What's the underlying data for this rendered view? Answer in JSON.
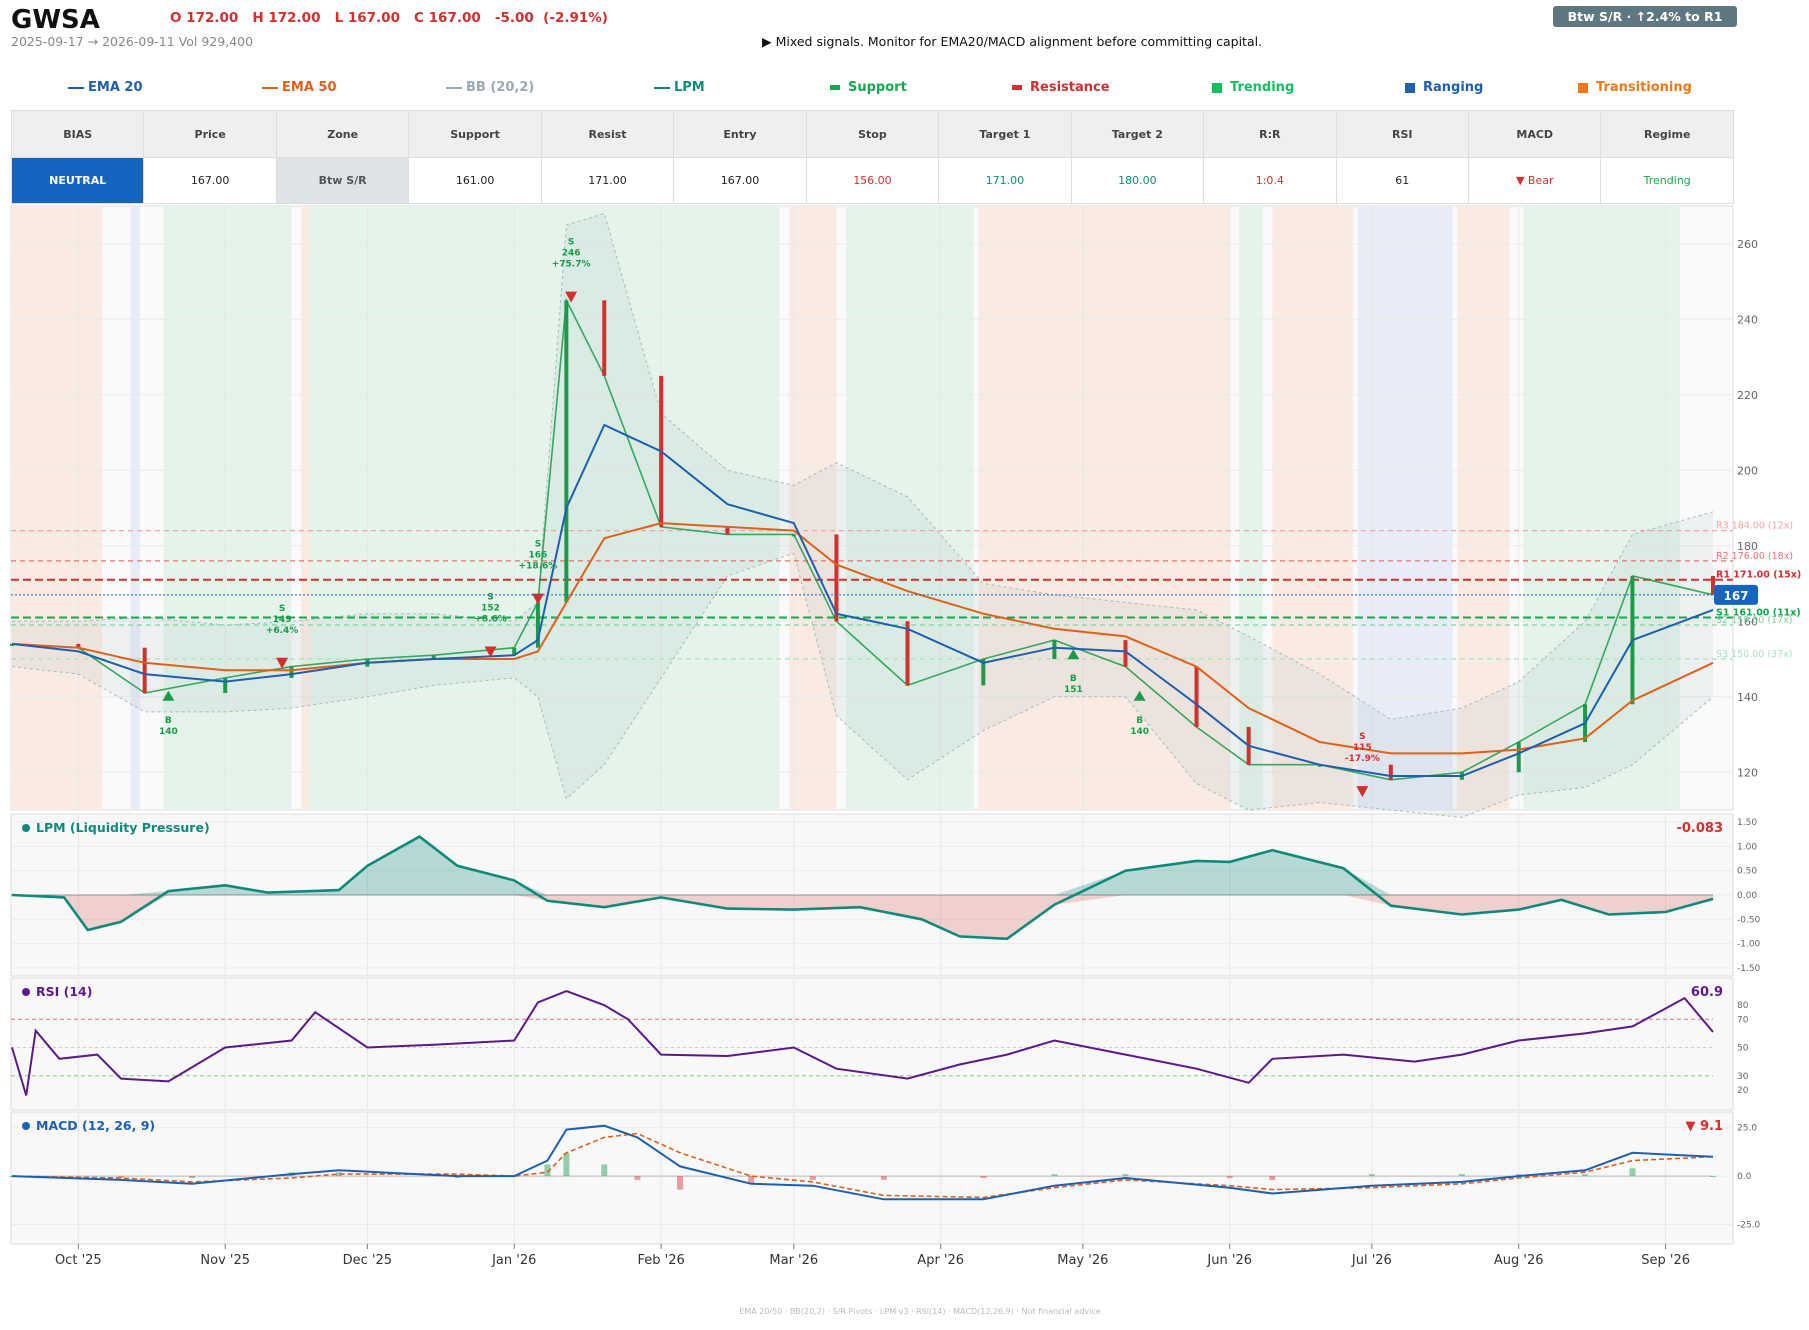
{
  "header": {
    "ticker": "GWSA",
    "ohlc_text": "O 172.00   H 172.00   L 167.00   C 167.00   -5.00  (-2.91%)",
    "date_range_text": "2025-09-17 → 2026-09-11   Vol 929,400",
    "message": "▶  Mixed signals. Monitor for EMA20/MACD alignment before committing capital.",
    "badge": "Btw S/R  ·  ↑2.4% to R1"
  },
  "legend": [
    {
      "label": "EMA 20",
      "color": "#1f5fb0",
      "kind": "line"
    },
    {
      "label": "EMA 50",
      "color": "#e0601a",
      "kind": "line"
    },
    {
      "label": "BB (20,2)",
      "color": "#9aaab5",
      "kind": "line"
    },
    {
      "label": "LPM",
      "color": "#0f8a7a",
      "kind": "line"
    },
    {
      "label": "Support",
      "color": "#14a84e",
      "kind": "bar"
    },
    {
      "label": "Resistance",
      "color": "#d32f2f",
      "kind": "bar"
    },
    {
      "label": "Trending",
      "color": "#12c060",
      "kind": "square"
    },
    {
      "label": "Ranging",
      "color": "#1f5fb0",
      "kind": "square"
    },
    {
      "label": "Transitioning",
      "color": "#f07818",
      "kind": "square"
    }
  ],
  "table": {
    "headers": [
      "BIAS",
      "Price",
      "Zone",
      "Support",
      "Resist",
      "Entry",
      "Stop",
      "Target 1",
      "Target 2",
      "R:R",
      "RSI",
      "MACD",
      "Regime"
    ],
    "values": [
      "NEUTRAL",
      "167.00",
      "Btw S/R",
      "161.00",
      "171.00",
      "167.00",
      "156.00",
      "171.00",
      "180.00",
      "1:0.4",
      "61",
      "▼ Bear",
      "Trending"
    ],
    "colors": {
      "bias_bg": "#1565c0",
      "zone_bg": "#dfe3e6",
      "stop": "#d32f2f",
      "target1": "#0f8a7a",
      "target2": "#0f8a7a",
      "rr": "#d32f2f",
      "macd": "#d32f2f",
      "regime": "#14a84e"
    }
  },
  "chart_data": {
    "type": "line",
    "title": "GWSA",
    "price": {
      "ylim": [
        110,
        270
      ],
      "yticks": [
        120,
        140,
        160,
        180,
        200,
        220,
        240,
        260
      ],
      "last_price_label": "167",
      "x_dates": [
        "2025-09-17",
        "2025-10-01",
        "2025-10-15",
        "2025-11-01",
        "2025-11-15",
        "2025-12-01",
        "2025-12-15",
        "2026-01-01",
        "2026-01-06",
        "2026-01-12",
        "2026-01-20",
        "2026-02-01",
        "2026-02-15",
        "2026-03-01",
        "2026-03-10",
        "2026-03-25",
        "2026-04-10",
        "2026-04-25",
        "2026-05-10",
        "2026-05-25",
        "2026-06-05",
        "2026-06-20",
        "2026-07-05",
        "2026-07-20",
        "2026-08-01",
        "2026-08-15",
        "2026-08-25",
        "2026-09-11"
      ],
      "close": [
        154,
        153,
        141,
        145,
        148,
        150,
        151,
        153,
        165,
        245,
        225,
        185,
        183,
        183,
        160,
        143,
        150,
        155,
        148,
        132,
        122,
        122,
        118,
        120,
        128,
        138,
        172,
        167
      ],
      "ema20": [
        154,
        152,
        146,
        144,
        146,
        149,
        150,
        151,
        155,
        190,
        212,
        205,
        191,
        186,
        162,
        158,
        149,
        153,
        152,
        138,
        127,
        122,
        119,
        119,
        125,
        133,
        155,
        163
      ],
      "ema50": [
        154,
        153,
        149,
        147,
        147,
        149,
        150,
        150,
        152,
        165,
        182,
        186,
        185,
        184,
        175,
        168,
        162,
        158,
        156,
        148,
        137,
        128,
        125,
        125,
        126,
        129,
        139,
        149
      ],
      "bb_upper": [
        160,
        160,
        161,
        159,
        160,
        162,
        162,
        160,
        165,
        265,
        268,
        215,
        200,
        196,
        202,
        193,
        170,
        167,
        165,
        163,
        156,
        146,
        134,
        137,
        144,
        160,
        183,
        189
      ],
      "bb_lower": [
        148,
        146,
        136,
        136,
        137,
        140,
        143,
        145,
        140,
        113,
        122,
        145,
        172,
        178,
        135,
        118,
        131,
        140,
        140,
        117,
        110,
        112,
        110,
        108,
        114,
        116,
        122,
        140
      ],
      "levels": [
        {
          "label": "R3 184.00 (12x)",
          "value": 184,
          "color": "#f4a3a3"
        },
        {
          "label": "R2 176.00 (18x)",
          "value": 176,
          "color": "#e57373"
        },
        {
          "label": "R1 171.00 (15x)",
          "value": 171,
          "color": "#d32f2f"
        },
        {
          "label": "S1 161.00 (11x)",
          "value": 161,
          "color": "#14a84e"
        },
        {
          "label": "S2 159.00 (17x)",
          "value": 159,
          "color": "#7fd4a0"
        },
        {
          "label": "S3 150.00 (37x)",
          "value": 150,
          "color": "#a8e2bf"
        }
      ],
      "regime_bands": [
        {
          "start": "2025-09-17",
          "end": "2025-10-06",
          "regime": "Transitioning"
        },
        {
          "start": "2025-10-12",
          "end": "2025-10-14",
          "regime": "Ranging"
        },
        {
          "start": "2025-10-19",
          "end": "2025-11-15",
          "regime": "Trending"
        },
        {
          "start": "2025-11-17",
          "end": "2025-11-19",
          "regime": "Transitioning"
        },
        {
          "start": "2025-11-19",
          "end": "2026-02-26",
          "regime": "Trending"
        },
        {
          "start": "2026-02-28",
          "end": "2026-03-10",
          "regime": "Transitioning"
        },
        {
          "start": "2026-03-12",
          "end": "2026-04-08",
          "regime": "Trending"
        },
        {
          "start": "2026-04-09",
          "end": "2026-06-01",
          "regime": "Transitioning"
        },
        {
          "start": "2026-06-03",
          "end": "2026-06-08",
          "regime": "Trending"
        },
        {
          "start": "2026-06-10",
          "end": "2026-06-27",
          "regime": "Transitioning"
        },
        {
          "start": "2026-06-28",
          "end": "2026-07-18",
          "regime": "Ranging"
        },
        {
          "start": "2026-07-19",
          "end": "2026-07-30",
          "regime": "Transitioning"
        },
        {
          "start": "2026-08-02",
          "end": "2026-09-04",
          "regime": "Trending"
        }
      ],
      "signals": [
        {
          "type": "B",
          "date": "2025-10-20",
          "price": 140,
          "label": "B",
          "sub": "140"
        },
        {
          "type": "S",
          "date": "2025-11-13",
          "price": 149,
          "label": "S",
          "sub": "149",
          "pct": "+6.4%"
        },
        {
          "type": "S",
          "date": "2025-12-27",
          "price": 152,
          "label": "S",
          "sub": "152",
          "pct": "+8.6%"
        },
        {
          "type": "S",
          "date": "2026-01-06",
          "price": 166,
          "label": "S",
          "sub": "166",
          "pct": "+18.6%"
        },
        {
          "type": "S",
          "date": "2026-01-13",
          "price": 246,
          "label": "S",
          "sub": "246",
          "pct": "+75.7%"
        },
        {
          "type": "B",
          "date": "2026-04-29",
          "price": 151,
          "label": "B",
          "sub": "151"
        },
        {
          "type": "B",
          "date": "2026-05-13",
          "price": 140,
          "label": "B",
          "sub": "140"
        },
        {
          "type": "S",
          "date": "2026-06-29",
          "price": 115,
          "label": "S",
          "sub": "115",
          "pct": "-17.9%"
        }
      ]
    },
    "lpm": {
      "title": "LPM (Liquidity Pressure)",
      "current": "-0.083",
      "ylim": [
        -1.5,
        1.5
      ],
      "yticks": [
        "1.50",
        "1.00",
        "0.50",
        "0.00",
        "-0.50",
        "-1.00",
        "-1.50"
      ],
      "dates": [
        "2025-09-17",
        "2025-09-28",
        "2025-10-03",
        "2025-10-10",
        "2025-10-20",
        "2025-11-01",
        "2025-11-10",
        "2025-11-25",
        "2025-12-01",
        "2025-12-12",
        "2025-12-20",
        "2026-01-01",
        "2026-01-08",
        "2026-01-20",
        "2026-02-01",
        "2026-02-15",
        "2026-03-01",
        "2026-03-15",
        "2026-03-28",
        "2026-04-05",
        "2026-04-15",
        "2026-04-25",
        "2026-05-10",
        "2026-05-25",
        "2026-06-01",
        "2026-06-10",
        "2026-06-25",
        "2026-07-05",
        "2026-07-20",
        "2026-08-01",
        "2026-08-10",
        "2026-08-20",
        "2026-09-01",
        "2026-09-11"
      ],
      "values": [
        0.0,
        -0.05,
        -0.72,
        -0.55,
        0.08,
        0.2,
        0.05,
        0.1,
        0.6,
        1.2,
        0.6,
        0.3,
        -0.12,
        -0.25,
        -0.05,
        -0.28,
        -0.3,
        -0.25,
        -0.5,
        -0.85,
        -0.9,
        -0.2,
        0.5,
        0.7,
        0.68,
        0.92,
        0.55,
        -0.22,
        -0.4,
        -0.3,
        -0.1,
        -0.4,
        -0.35,
        -0.08
      ]
    },
    "rsi": {
      "title": "RSI (14)",
      "current": "60.9",
      "ylim": [
        10,
        95
      ],
      "yticks": [
        80,
        70,
        50,
        30,
        20
      ],
      "dates": [
        "2025-09-17",
        "2025-09-20",
        "2025-09-22",
        "2025-09-27",
        "2025-10-05",
        "2025-10-10",
        "2025-10-20",
        "2025-11-01",
        "2025-11-15",
        "2025-11-20",
        "2025-12-01",
        "2025-12-15",
        "2026-01-01",
        "2026-01-06",
        "2026-01-12",
        "2026-01-20",
        "2026-01-25",
        "2026-02-01",
        "2026-02-15",
        "2026-03-01",
        "2026-03-10",
        "2026-03-25",
        "2026-04-05",
        "2026-04-15",
        "2026-04-25",
        "2026-05-10",
        "2026-05-25",
        "2026-06-05",
        "2026-06-10",
        "2026-06-25",
        "2026-07-10",
        "2026-07-20",
        "2026-08-01",
        "2026-08-15",
        "2026-08-25",
        "2026-09-05",
        "2026-09-11"
      ],
      "values": [
        50,
        16,
        62,
        42,
        45,
        28,
        26,
        50,
        55,
        75,
        50,
        52,
        55,
        82,
        90,
        80,
        70,
        45,
        44,
        50,
        35,
        28,
        38,
        45,
        55,
        45,
        35,
        25,
        42,
        45,
        40,
        45,
        55,
        60,
        65,
        85,
        61
      ]
    },
    "macd": {
      "title": "MACD (12, 26, 9)",
      "current": "▼ 9.1",
      "ylim": [
        -32,
        30
      ],
      "yticks": [
        "25.0",
        "0.0",
        "-25.0"
      ],
      "dates": [
        "2025-09-17",
        "2025-10-10",
        "2025-10-25",
        "2025-11-15",
        "2025-11-25",
        "2025-12-20",
        "2026-01-01",
        "2026-01-08",
        "2026-01-12",
        "2026-01-20",
        "2026-01-27",
        "2026-02-05",
        "2026-02-20",
        "2026-03-05",
        "2026-03-20",
        "2026-04-10",
        "2026-04-25",
        "2026-05-10",
        "2026-06-01",
        "2026-06-10",
        "2026-07-01",
        "2026-07-20",
        "2026-08-01",
        "2026-08-15",
        "2026-08-25",
        "2026-09-11"
      ],
      "macd": [
        0,
        -2,
        -4,
        1,
        3,
        0,
        0,
        8,
        24,
        26,
        20,
        5,
        -4,
        -5,
        -12,
        -12,
        -5,
        -1,
        -6,
        -9,
        -5,
        -3,
        0,
        3,
        12,
        10
      ],
      "signal": [
        0,
        -1,
        -3,
        -1,
        1,
        1,
        0,
        2,
        12,
        20,
        22,
        12,
        0,
        -3,
        -10,
        -11,
        -6,
        -2,
        -5,
        -7,
        -6,
        -4,
        -1,
        2,
        8,
        10
      ]
    },
    "x_tick_labels": [
      "Oct '25",
      "Nov '25",
      "Dec '25",
      "Jan '26",
      "Feb '26",
      "Mar '26",
      "Apr '26",
      "May '26",
      "Jun '26",
      "Jul '26",
      "Aug '26",
      "Sep '26"
    ],
    "x_tick_dates": [
      "2025-10-01",
      "2025-11-01",
      "2025-12-01",
      "2026-01-01",
      "2026-02-01",
      "2026-03-01",
      "2026-04-01",
      "2026-05-01",
      "2026-06-01",
      "2026-07-01",
      "2026-08-01",
      "2026-09-01"
    ],
    "regime_colors": {
      "Trending": "#e4f4ea",
      "Ranging": "#e8ecf6",
      "Transitioning": "#f9ebe2"
    }
  },
  "footer": "EMA 20/50  ·  BB(20,2)  ·  S/R Pivots  ·  LPM v3  ·  RSI(14)  ·  MACD(12,26,9)  ·  Not financial advice"
}
